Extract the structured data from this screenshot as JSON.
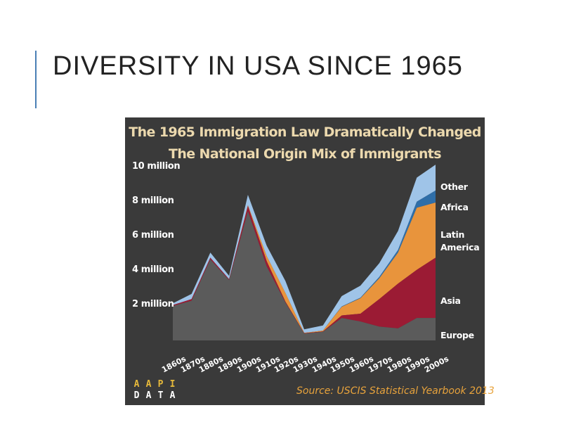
{
  "slide": {
    "title": "DIVERSITY IN USA SINCE 1965",
    "accent_color": "#4a7fb5"
  },
  "chart_data": {
    "type": "area",
    "stacked": true,
    "title": "The 1965 Immigration Law Dramatically Changed The National Origin Mix of Immigrants",
    "title_line1": "The 1965 Immigration Law Dramatically Changed",
    "title_line2": "The National Origin Mix of Immigrants",
    "xlabel": "",
    "ylabel": "",
    "ylim": [
      0,
      10.5
    ],
    "y_ticks": [
      {
        "value": 2,
        "label": "2 million"
      },
      {
        "value": 4,
        "label": "4 million"
      },
      {
        "value": 6,
        "label": "6 million"
      },
      {
        "value": 8,
        "label": "8 million"
      },
      {
        "value": 10,
        "label": "10 million"
      }
    ],
    "categories": [
      "1860s",
      "1870s",
      "1880s",
      "1890s",
      "1900s",
      "1910s",
      "1920s",
      "1930s",
      "1940s",
      "1950s",
      "1960s",
      "1970s",
      "1980s",
      "1990s",
      "2000s"
    ],
    "series": [
      {
        "name": "Europe",
        "color": "#5b5b5b",
        "values": [
          2.0,
          2.3,
          4.7,
          3.5,
          7.5,
          4.3,
          2.2,
          0.4,
          0.5,
          1.3,
          1.1,
          0.8,
          0.7,
          1.3,
          1.3
        ]
      },
      {
        "name": "Asia",
        "color": "#9b1b34",
        "values": [
          0.05,
          0.1,
          0.1,
          0.05,
          0.3,
          0.3,
          0.05,
          0.02,
          0.02,
          0.15,
          0.45,
          1.6,
          2.6,
          2.8,
          3.5
        ]
      },
      {
        "name": "Latin America",
        "color": "#e8943c",
        "values": [
          0.0,
          0.0,
          0.0,
          0.0,
          0.05,
          0.3,
          0.5,
          0.02,
          0.05,
          0.5,
          0.9,
          1.2,
          1.8,
          3.6,
          3.2
        ]
      },
      {
        "name": "Africa",
        "color": "#2f6ea8",
        "values": [
          0.0,
          0.0,
          0.0,
          0.0,
          0.0,
          0.0,
          0.0,
          0.0,
          0.0,
          0.02,
          0.03,
          0.08,
          0.15,
          0.35,
          0.7
        ]
      },
      {
        "name": "Other",
        "color": "#9fc4e8",
        "values": [
          0.1,
          0.3,
          0.3,
          0.2,
          0.6,
          0.6,
          0.7,
          0.2,
          0.3,
          0.6,
          0.7,
          0.8,
          1.1,
          1.4,
          1.5
        ]
      }
    ],
    "legend": [
      "Other",
      "Africa",
      "Latin America",
      "Asia",
      "Europe"
    ],
    "legend_label_lines": {
      "other": "Other",
      "africa": "Africa",
      "latin_1": "Latin",
      "latin_2": "America",
      "asia": "Asia",
      "europe": "Europe"
    },
    "legend_placement": "right",
    "background_color": "#3a3a3a",
    "title_color": "#ecd9ae",
    "source": "Source: USCIS Statistical Yearbook 2013",
    "logo_letters": [
      "A",
      "A",
      "P",
      "I",
      "D",
      "A",
      "T",
      "A"
    ]
  }
}
